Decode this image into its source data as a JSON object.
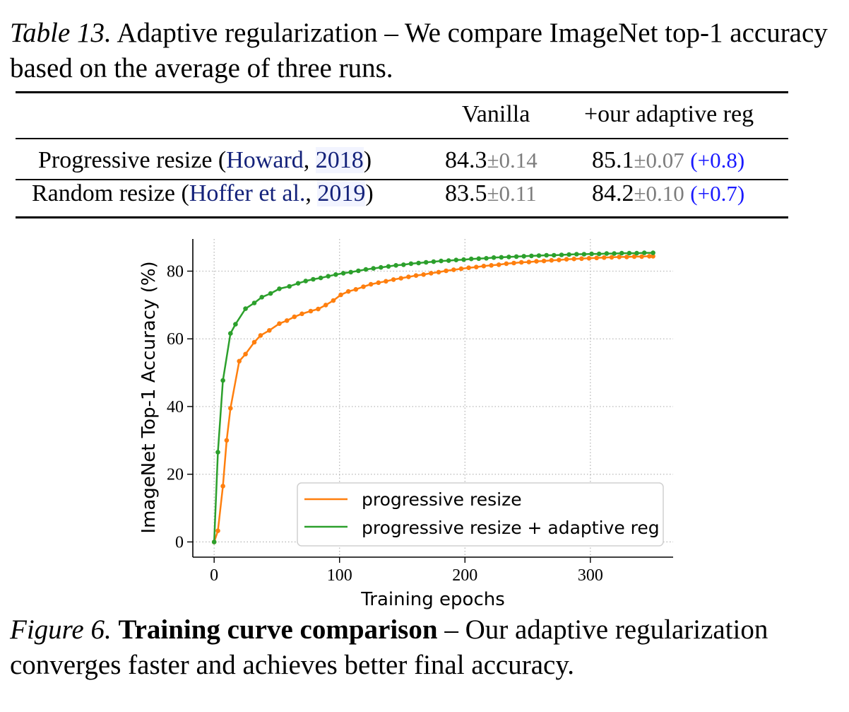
{
  "table": {
    "label": "Table 13.",
    "caption": "Adaptive regularization – We compare ImageNet top-1 accuracy based on the average of three runs.",
    "headers": [
      "",
      "Vanilla",
      "+our adaptive reg"
    ],
    "rows": [
      {
        "method": "Progressive resize",
        "cite_author": "Howard",
        "cite_year": "2018",
        "vanilla": "84.3",
        "vanilla_std": "±0.14",
        "adaptive": "85.1",
        "adaptive_std": "±0.07",
        "delta": "(+0.8)"
      },
      {
        "method": "Random resize",
        "cite_author": "Hoffer et al.",
        "cite_year": "2019",
        "vanilla": "83.5",
        "vanilla_std": "±0.11",
        "adaptive": "84.2",
        "adaptive_std": "±0.10",
        "delta": "(+0.7)"
      }
    ]
  },
  "figure": {
    "label": "Figure 6.",
    "title": "Training curve comparison",
    "caption": "– Our adaptive regularization converges faster and achieves better final accuracy."
  },
  "colors": {
    "orange": "#ff7f0e",
    "green": "#2ca02c",
    "link": "#14227a",
    "delta": "#1a1aff",
    "std": "#7d7d7d"
  },
  "chart_data": {
    "type": "line",
    "xlabel": "Training epochs",
    "ylabel": "ImageNet Top-1 Accuracy (%)",
    "xlim": [
      -17,
      366
    ],
    "ylim": [
      -4.5,
      89.5
    ],
    "xticks": [
      0,
      100,
      200,
      300
    ],
    "yticks": [
      0,
      20,
      40,
      60,
      80
    ],
    "grid": true,
    "legend_position": "lower-right",
    "series": [
      {
        "name": "progressive resize",
        "color": "#ff7f0e",
        "x": [
          0,
          3,
          7,
          10,
          13,
          20,
          25,
          32,
          37,
          44,
          52,
          58,
          64,
          70,
          77,
          83,
          89,
          95,
          101,
          107,
          113,
          119,
          125,
          131,
          137,
          143,
          149,
          155,
          161,
          167,
          173,
          179,
          185,
          191,
          197,
          203,
          209,
          215,
          221,
          227,
          233,
          239,
          245,
          251,
          257,
          263,
          269,
          275,
          281,
          287,
          293,
          299,
          305,
          311,
          317,
          323,
          329,
          335,
          341,
          347,
          350
        ],
        "y": [
          0,
          3.3,
          16.5,
          30,
          39.5,
          53.4,
          55.5,
          59,
          61,
          62.5,
          64.5,
          65.4,
          66.5,
          67.4,
          68.2,
          68.8,
          70,
          71.3,
          73,
          74,
          74.6,
          75.4,
          76.1,
          76.6,
          77,
          77.5,
          77.9,
          78.3,
          78.7,
          79,
          79.4,
          79.7,
          80.1,
          80.4,
          80.7,
          81,
          81.2,
          81.5,
          81.7,
          81.9,
          82.2,
          82.4,
          82.6,
          82.7,
          82.9,
          83,
          83.2,
          83.3,
          83.5,
          83.6,
          83.7,
          83.8,
          83.9,
          84,
          84.1,
          84.2,
          84.2,
          84.3,
          84.3,
          84.4,
          84.4
        ]
      },
      {
        "name": "progressive resize + adaptive reg",
        "color": "#2ca02c",
        "x": [
          0,
          3,
          7,
          13,
          17,
          25,
          32,
          38,
          45,
          52,
          60,
          67,
          73,
          79,
          85,
          91,
          97,
          103,
          109,
          115,
          121,
          127,
          133,
          139,
          145,
          151,
          157,
          163,
          169,
          175,
          181,
          187,
          193,
          199,
          205,
          211,
          217,
          223,
          229,
          235,
          241,
          247,
          253,
          259,
          265,
          271,
          277,
          283,
          289,
          295,
          301,
          307,
          313,
          319,
          325,
          331,
          337,
          343,
          350
        ],
        "y": [
          0,
          26.5,
          47.7,
          61.6,
          64.3,
          68.9,
          70.6,
          72.3,
          73.4,
          74.8,
          75.5,
          76.4,
          77.1,
          77.6,
          78,
          78.5,
          79,
          79.4,
          79.7,
          80.1,
          80.5,
          80.8,
          81.1,
          81.4,
          81.7,
          81.9,
          82.2,
          82.4,
          82.6,
          82.8,
          83,
          83.1,
          83.3,
          83.4,
          83.6,
          83.7,
          83.8,
          84,
          84.1,
          84.2,
          84.3,
          84.4,
          84.5,
          84.6,
          84.7,
          84.7,
          84.8,
          84.9,
          85,
          85,
          85.1,
          85.1,
          85.2,
          85.2,
          85.3,
          85.3,
          85.3,
          85.4,
          85.4
        ]
      }
    ]
  }
}
